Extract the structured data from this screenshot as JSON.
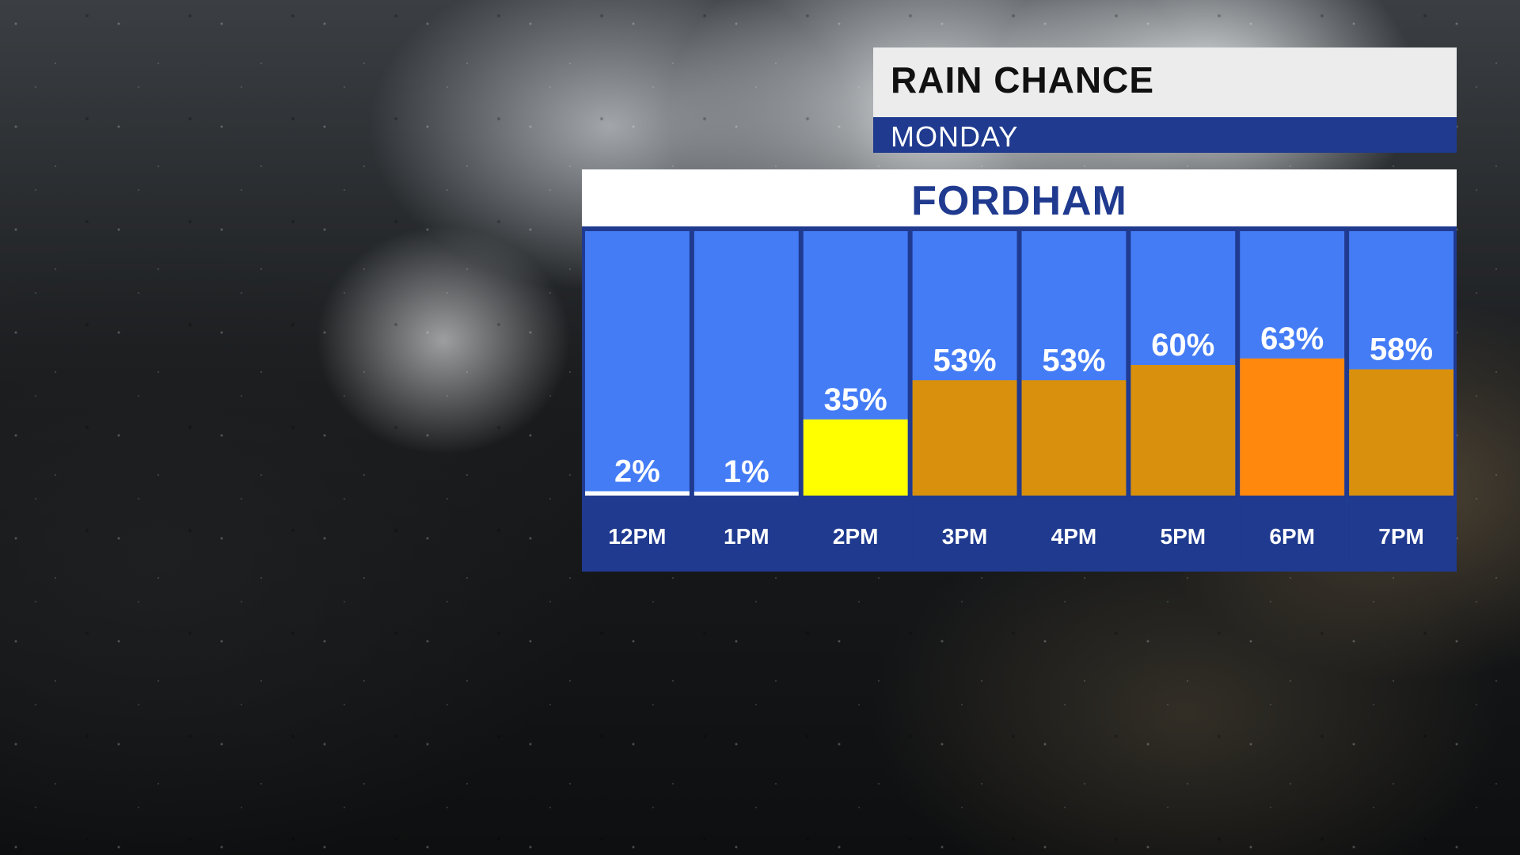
{
  "header": {
    "title": "RAIN CHANCE",
    "day": "MONDAY",
    "location": "FORDHAM"
  },
  "colors": {
    "column_bg": "#447cf6",
    "frame": "#1f3a8f",
    "low": "#ffffff",
    "moderate": "#ffff00",
    "high": "#d9900c",
    "highest": "#ff880d"
  },
  "chart_data": {
    "type": "bar",
    "title": "RAIN CHANCE",
    "subtitle": "MONDAY",
    "location": "FORDHAM",
    "categories": [
      "12PM",
      "1PM",
      "2PM",
      "3PM",
      "4PM",
      "5PM",
      "6PM",
      "7PM"
    ],
    "values": [
      2,
      1,
      35,
      53,
      53,
      60,
      63,
      58
    ],
    "value_labels": [
      "2%",
      "1%",
      "35%",
      "53%",
      "53%",
      "60%",
      "63%",
      "58%"
    ],
    "bar_colors": [
      "#ffffff",
      "#ffffff",
      "#ffff00",
      "#d9900c",
      "#d9900c",
      "#d9900c",
      "#ff880d",
      "#d9900c"
    ],
    "unit": "%",
    "ylim": [
      0,
      100
    ],
    "grid": false,
    "legend": "none"
  }
}
